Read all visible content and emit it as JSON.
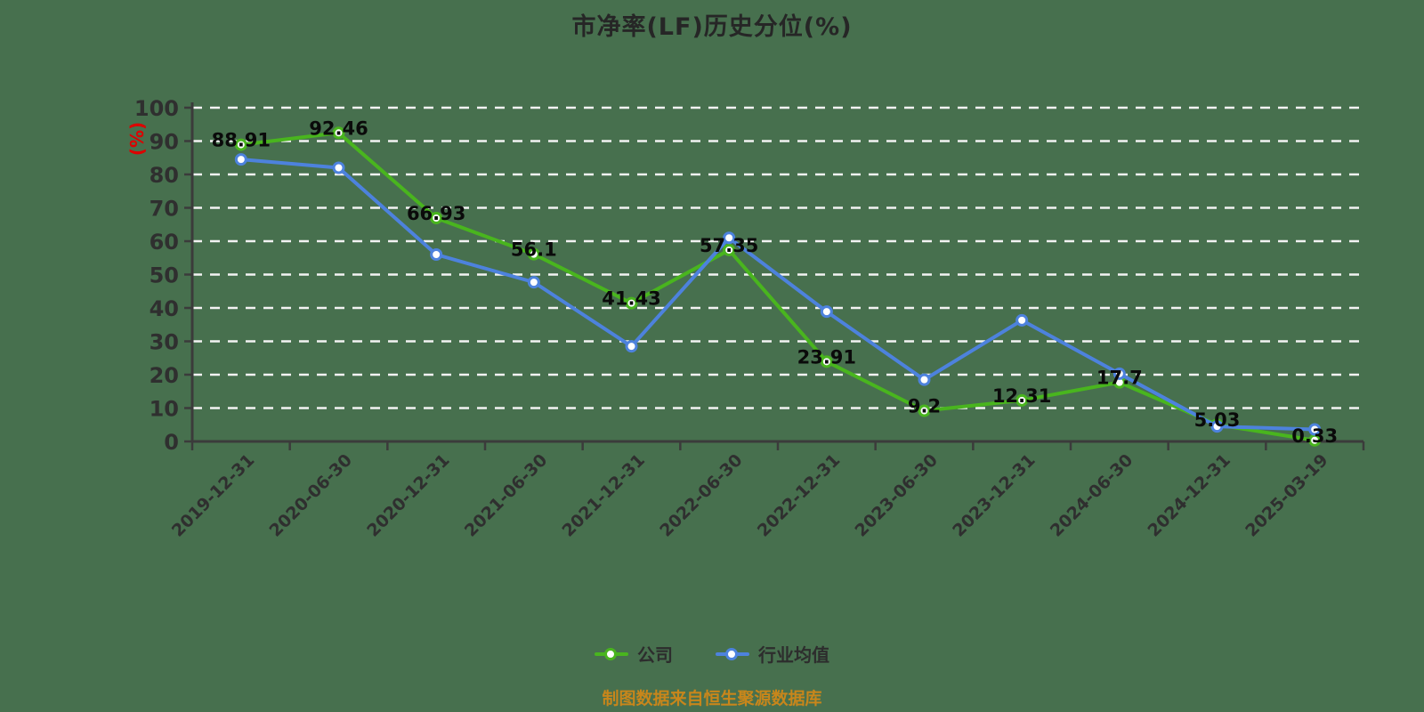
{
  "page": {
    "background": "#47704e"
  },
  "header": {
    "title": "市净率(LF)历史分位(%)"
  },
  "footer": {
    "source_note": "制图数据来自恒生聚源数据库",
    "color": "#c8861b"
  },
  "legend": {
    "items": [
      {
        "label": "公司",
        "color": "#49b51e"
      },
      {
        "label": "行业均值",
        "color": "#4d82dd"
      }
    ]
  },
  "chart_data": {
    "type": "line",
    "title": "市净率(LF)历史分位(%)",
    "ylabel": "(%)",
    "ylabel_color": "#dd0000",
    "ylim": [
      0,
      100
    ],
    "y_ticks": [
      0,
      10,
      20,
      30,
      40,
      50,
      60,
      70,
      80,
      90,
      100
    ],
    "grid": "horizontal-white-dashed",
    "legend_position": "bottom",
    "categories": [
      "2019-12-31",
      "2020-06-30",
      "2020-12-31",
      "2021-06-30",
      "2021-12-31",
      "2022-06-30",
      "2022-12-31",
      "2023-06-30",
      "2023-12-31",
      "2024-06-30",
      "2024-12-31",
      "2025-03-19"
    ],
    "series": [
      {
        "name": "公司",
        "color": "#49b51e",
        "show_labels": true,
        "values": [
          88.91,
          92.46,
          66.93,
          56.1,
          41.43,
          57.35,
          23.91,
          9.2,
          12.31,
          17.7,
          5.03,
          0.33
        ]
      },
      {
        "name": "行业均值",
        "color": "#4d82dd",
        "show_labels": false,
        "values": [
          84.5,
          82,
          56,
          47.7,
          28.5,
          61,
          38.9,
          18.5,
          36.3,
          20.3,
          4.5,
          3.6
        ]
      }
    ],
    "style": {
      "grid_color": "#f2f2f2",
      "axis_color": "#3b3b3b",
      "tick_label_color": "#2f2f2f",
      "data_label_color": "#0a0a0a",
      "marker_fill": "#ffffff"
    }
  }
}
